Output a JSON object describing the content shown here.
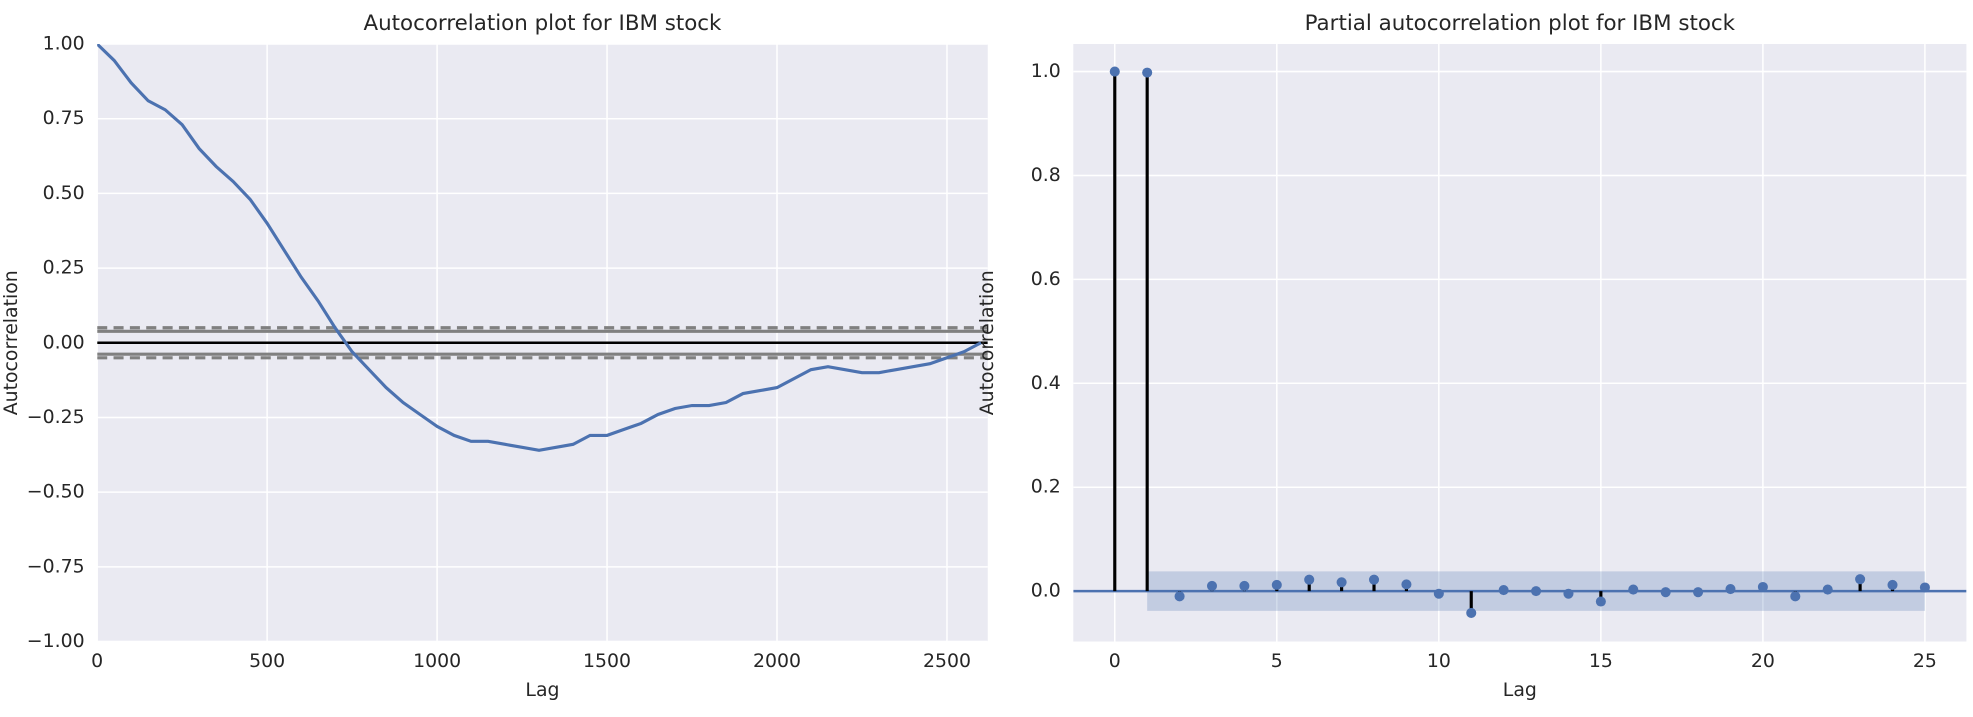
{
  "chart_data": [
    {
      "type": "line",
      "title": "Autocorrelation plot for IBM stock",
      "xlabel": "Lag",
      "ylabel": "Autocorrelation",
      "x": [
        0,
        50,
        100,
        150,
        200,
        250,
        300,
        350,
        400,
        450,
        500,
        550,
        600,
        650,
        700,
        750,
        800,
        850,
        900,
        950,
        1000,
        1050,
        1100,
        1150,
        1200,
        1250,
        1300,
        1350,
        1400,
        1450,
        1500,
        1550,
        1600,
        1650,
        1700,
        1750,
        1800,
        1850,
        1900,
        1950,
        2000,
        2050,
        2100,
        2150,
        2200,
        2250,
        2300,
        2350,
        2400,
        2450,
        2500,
        2550,
        2600
      ],
      "series": [
        {
          "color": "#4c72b0",
          "values": [
            1.0,
            0.945,
            0.87,
            0.81,
            0.78,
            0.73,
            0.65,
            0.59,
            0.54,
            0.48,
            0.4,
            0.31,
            0.22,
            0.14,
            0.05,
            -0.03,
            -0.09,
            -0.15,
            -0.2,
            -0.24,
            -0.28,
            -0.31,
            -0.33,
            -0.33,
            -0.34,
            -0.35,
            -0.36,
            -0.35,
            -0.34,
            -0.31,
            -0.31,
            -0.29,
            -0.27,
            -0.24,
            -0.22,
            -0.21,
            -0.21,
            -0.2,
            -0.17,
            -0.16,
            -0.15,
            -0.12,
            -0.09,
            -0.08,
            -0.09,
            -0.1,
            -0.1,
            -0.09,
            -0.08,
            -0.07,
            -0.05,
            -0.03,
            0.0
          ]
        }
      ],
      "confidence_95": 0.0383,
      "confidence_99": 0.0503,
      "xlim": [
        0,
        2620
      ],
      "xticks": [
        0,
        500,
        1000,
        1500,
        2000,
        2500
      ],
      "ylim": [
        -1,
        1
      ],
      "yticks": [
        {
          "value": -1,
          "label": "−1.00"
        },
        {
          "value": -0.75,
          "label": "−0.75"
        },
        {
          "value": -0.5,
          "label": "−0.50"
        },
        {
          "value": -0.25,
          "label": "−0.25"
        },
        {
          "value": 0,
          "label": "0.00"
        },
        {
          "value": 0.25,
          "label": "0.25"
        },
        {
          "value": 0.5,
          "label": "0.50"
        },
        {
          "value": 0.75,
          "label": "0.75"
        },
        {
          "value": 1,
          "label": "1.00"
        }
      ],
      "grid": true
    },
    {
      "type": "stem",
      "title": "Partial autocorrelation plot for IBM stock",
      "xlabel": "Lag",
      "ylabel": "Autocorrelation",
      "x": [
        0,
        1,
        2,
        3,
        4,
        5,
        6,
        7,
        8,
        9,
        10,
        11,
        12,
        13,
        14,
        15,
        16,
        17,
        18,
        19,
        20,
        21,
        22,
        23,
        24,
        25
      ],
      "series": [
        {
          "color": "#4c72b0",
          "values": [
            1.0,
            0.998,
            -0.01,
            0.01,
            0.01,
            0.012,
            0.022,
            0.017,
            0.022,
            0.013,
            -0.005,
            -0.042,
            0.002,
            0.0,
            -0.005,
            -0.02,
            0.003,
            -0.002,
            -0.002,
            0.004,
            0.008,
            -0.01,
            0.003,
            0.023,
            0.012,
            0.007
          ]
        }
      ],
      "confidence": 0.038,
      "xlim": [
        -1.28,
        26.28
      ],
      "xticks": [
        0,
        5,
        10,
        15,
        20,
        25
      ],
      "ylim": [
        -0.097,
        1.053
      ],
      "yticks": [
        {
          "value": 0,
          "label": "0.0"
        },
        {
          "value": 0.2,
          "label": "0.2"
        },
        {
          "value": 0.4,
          "label": "0.4"
        },
        {
          "value": 0.6,
          "label": "0.6"
        },
        {
          "value": 0.8,
          "label": "0.8"
        },
        {
          "value": 1,
          "label": "1.0"
        }
      ],
      "grid": true
    }
  ]
}
